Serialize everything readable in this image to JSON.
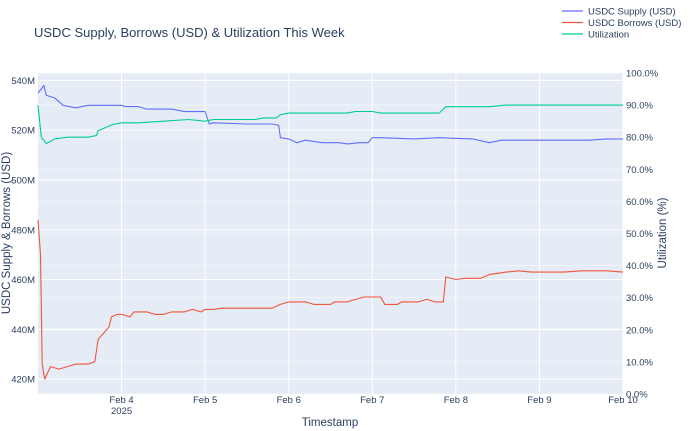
{
  "chart_data": {
    "type": "line",
    "title": "USDC Supply, Borrows (USD) & Utilization This Week",
    "xlabel": "Timestamp",
    "ylabel": "USDC Supply & Borrows (USD)",
    "y2label": "Utilization (%)",
    "x_ticks": [
      {
        "x": 3.0,
        "label": "Feb 4",
        "sub": "2025"
      },
      {
        "x": 4.0,
        "label": "Feb 5",
        "sub": ""
      },
      {
        "x": 5.0,
        "label": "Feb 6",
        "sub": ""
      },
      {
        "x": 6.0,
        "label": "Feb 7",
        "sub": ""
      },
      {
        "x": 7.0,
        "label": "Feb 8",
        "sub": ""
      },
      {
        "x": 8.0,
        "label": "Feb 9",
        "sub": ""
      },
      {
        "x": 9.0,
        "label": "Feb 10",
        "sub": ""
      }
    ],
    "xlim": [
      2.0,
      9.0
    ],
    "x_unit": "days since Feb 1, 2025",
    "ylim": [
      414,
      543
    ],
    "y_ticks": [
      {
        "v": 420,
        "label": "420M"
      },
      {
        "v": 440,
        "label": "440M"
      },
      {
        "v": 460,
        "label": "460M"
      },
      {
        "v": 480,
        "label": "480M"
      },
      {
        "v": 500,
        "label": "500M"
      },
      {
        "v": 520,
        "label": "520M"
      },
      {
        "v": 540,
        "label": "540M"
      }
    ],
    "y2lim": [
      0,
      100
    ],
    "y2_ticks": [
      {
        "v": 0,
        "label": "0.0%"
      },
      {
        "v": 10,
        "label": "10.0%"
      },
      {
        "v": 20,
        "label": "20.0%"
      },
      {
        "v": 30,
        "label": "30.0%"
      },
      {
        "v": 40,
        "label": "40.0%"
      },
      {
        "v": 50,
        "label": "50.0%"
      },
      {
        "v": 60,
        "label": "60.0%"
      },
      {
        "v": 70,
        "label": "70.0%"
      },
      {
        "v": 80,
        "label": "80.0%"
      },
      {
        "v": 90,
        "label": "90.0%"
      },
      {
        "v": 100,
        "label": "100.0%"
      }
    ],
    "grid": true,
    "legend_position": "top-right",
    "series": [
      {
        "name": "USDC Supply (USD)",
        "color": "#636efa",
        "axis": "y",
        "points": [
          [
            2.0,
            535
          ],
          [
            2.05,
            537
          ],
          [
            2.07,
            538
          ],
          [
            2.1,
            534
          ],
          [
            2.2,
            533
          ],
          [
            2.3,
            530
          ],
          [
            2.45,
            529
          ],
          [
            2.6,
            530
          ],
          [
            2.8,
            530
          ],
          [
            3.0,
            530
          ],
          [
            3.05,
            529.5
          ],
          [
            3.2,
            529.5
          ],
          [
            3.3,
            528.5
          ],
          [
            3.6,
            528.5
          ],
          [
            3.75,
            527.5
          ],
          [
            4.0,
            527.5
          ],
          [
            4.05,
            522.5
          ],
          [
            4.1,
            523
          ],
          [
            4.5,
            522.5
          ],
          [
            4.8,
            522.5
          ],
          [
            4.88,
            522
          ],
          [
            4.9,
            517
          ],
          [
            5.0,
            516.5
          ],
          [
            5.1,
            515
          ],
          [
            5.2,
            516
          ],
          [
            5.4,
            515
          ],
          [
            5.6,
            515
          ],
          [
            5.7,
            514.5
          ],
          [
            5.85,
            515
          ],
          [
            5.95,
            515
          ],
          [
            6.0,
            517
          ],
          [
            6.1,
            517
          ],
          [
            6.5,
            516.5
          ],
          [
            6.8,
            517
          ],
          [
            7.2,
            516.5
          ],
          [
            7.4,
            515
          ],
          [
            7.55,
            516
          ],
          [
            8.0,
            516
          ],
          [
            8.6,
            516
          ],
          [
            8.8,
            516.5
          ],
          [
            9.0,
            516.5
          ]
        ]
      },
      {
        "name": "USDC Borrows (USD)",
        "color": "#ef553b",
        "axis": "y",
        "points": [
          [
            2.0,
            484
          ],
          [
            2.03,
            470
          ],
          [
            2.05,
            426
          ],
          [
            2.08,
            420
          ],
          [
            2.15,
            425
          ],
          [
            2.25,
            424
          ],
          [
            2.45,
            426
          ],
          [
            2.6,
            426
          ],
          [
            2.68,
            427
          ],
          [
            2.72,
            436
          ],
          [
            2.8,
            439
          ],
          [
            2.85,
            441
          ],
          [
            2.88,
            445
          ],
          [
            2.95,
            446
          ],
          [
            3.0,
            446
          ],
          [
            3.1,
            445
          ],
          [
            3.15,
            447
          ],
          [
            3.3,
            447
          ],
          [
            3.4,
            446
          ],
          [
            3.5,
            446
          ],
          [
            3.6,
            447
          ],
          [
            3.75,
            447
          ],
          [
            3.85,
            448
          ],
          [
            3.95,
            447
          ],
          [
            4.0,
            448
          ],
          [
            4.1,
            448
          ],
          [
            4.2,
            448.5
          ],
          [
            4.5,
            448.5
          ],
          [
            4.8,
            448.5
          ],
          [
            4.9,
            450
          ],
          [
            5.0,
            451
          ],
          [
            5.2,
            451
          ],
          [
            5.3,
            450
          ],
          [
            5.5,
            450
          ],
          [
            5.55,
            451
          ],
          [
            5.7,
            451
          ],
          [
            5.8,
            452
          ],
          [
            5.9,
            453
          ],
          [
            6.0,
            453
          ],
          [
            6.1,
            453
          ],
          [
            6.15,
            450
          ],
          [
            6.3,
            450
          ],
          [
            6.35,
            451
          ],
          [
            6.55,
            451
          ],
          [
            6.65,
            452
          ],
          [
            6.75,
            451
          ],
          [
            6.85,
            451
          ],
          [
            6.88,
            461
          ],
          [
            7.0,
            460
          ],
          [
            7.1,
            460.5
          ],
          [
            7.3,
            460.5
          ],
          [
            7.4,
            462
          ],
          [
            7.6,
            463
          ],
          [
            7.75,
            463.5
          ],
          [
            7.9,
            463
          ],
          [
            8.0,
            463
          ],
          [
            8.3,
            463
          ],
          [
            8.5,
            463.5
          ],
          [
            8.8,
            463.5
          ],
          [
            9.0,
            463
          ]
        ]
      },
      {
        "name": "Utilization",
        "color": "#00cc96",
        "axis": "y2",
        "points": [
          [
            2.0,
            90
          ],
          [
            2.04,
            80
          ],
          [
            2.1,
            78
          ],
          [
            2.2,
            79.5
          ],
          [
            2.35,
            80
          ],
          [
            2.6,
            80
          ],
          [
            2.7,
            80.5
          ],
          [
            2.72,
            82
          ],
          [
            2.85,
            83.5
          ],
          [
            2.9,
            84
          ],
          [
            3.0,
            84.5
          ],
          [
            3.2,
            84.5
          ],
          [
            3.5,
            85
          ],
          [
            3.8,
            85.5
          ],
          [
            4.0,
            85
          ],
          [
            4.1,
            85.5
          ],
          [
            4.6,
            85.5
          ],
          [
            4.7,
            86
          ],
          [
            4.85,
            86
          ],
          [
            4.9,
            87
          ],
          [
            5.0,
            87.5
          ],
          [
            5.4,
            87.5
          ],
          [
            5.7,
            87.5
          ],
          [
            5.8,
            88
          ],
          [
            6.0,
            88
          ],
          [
            6.1,
            87.5
          ],
          [
            6.8,
            87.5
          ],
          [
            6.88,
            89.5
          ],
          [
            7.0,
            89.5
          ],
          [
            7.4,
            89.5
          ],
          [
            7.6,
            90
          ],
          [
            8.0,
            90
          ],
          [
            8.6,
            90
          ],
          [
            9.0,
            90
          ]
        ]
      }
    ]
  }
}
